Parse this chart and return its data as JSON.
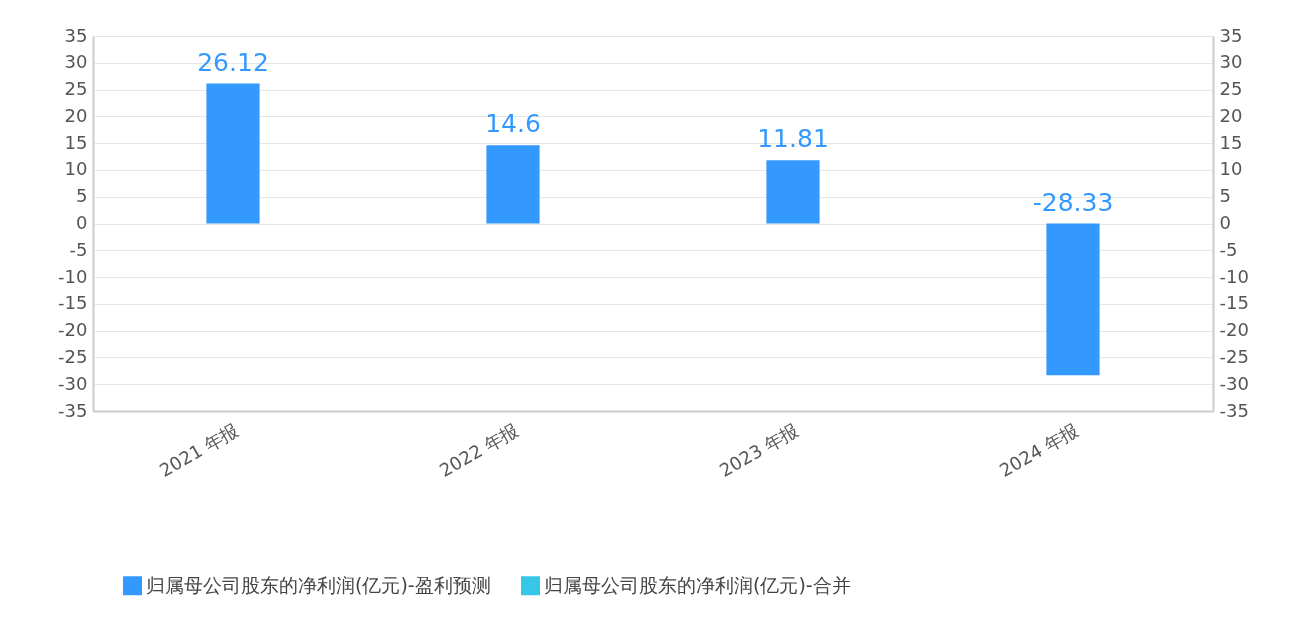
{
  "chart_data": {
    "type": "bar",
    "categories": [
      "2021 年报",
      "2022 年报",
      "2023 年报",
      "2024 年报"
    ],
    "series": [
      {
        "name": "归属母公司股东的净利润(亿元)-盈利预测",
        "color": "#3399ff",
        "values": [
          26.12,
          14.6,
          11.81,
          -28.33
        ]
      },
      {
        "name": "归属母公司股东的净利润(亿元)-合并",
        "color": "#36c6e8",
        "values": [
          null,
          null,
          null,
          null
        ]
      }
    ],
    "ylim": [
      -35,
      35
    ],
    "yticks": [
      -35,
      -30,
      -25,
      -20,
      -15,
      -10,
      -5,
      0,
      5,
      10,
      15,
      20,
      25,
      30,
      35
    ],
    "y2lim": [
      -35,
      35
    ],
    "y2ticks": [
      -35,
      -30,
      -25,
      -20,
      -15,
      -10,
      -5,
      0,
      5,
      10,
      15,
      20,
      25,
      30,
      35
    ],
    "grid": "y",
    "legend": "bottom",
    "data_labels": true
  }
}
